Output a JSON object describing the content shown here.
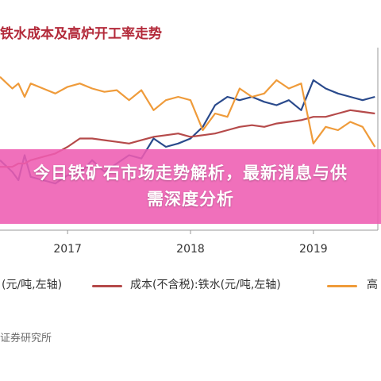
{
  "title": "铁水成本及高炉开工率走势",
  "banner_text": "今日铁矿石市场走势解析，最新消息与供需深度分析",
  "source_text": "证券研究所",
  "legend": [
    {
      "label": "(元/吨,左轴)",
      "color": "#2a4a8c"
    },
    {
      "label": "成本(不含税):铁水(元/吨,左轴)",
      "color": "#b54a4a"
    },
    {
      "label": "高",
      "color": "#ef9b3a"
    }
  ],
  "chart_data": {
    "type": "line",
    "x_ticks": [
      "2017",
      "2018",
      "2019"
    ],
    "x": [
      2016.45,
      2016.55,
      2016.6,
      2016.65,
      2016.7,
      2016.8,
      2016.9,
      2017.0,
      2017.1,
      2017.2,
      2017.3,
      2017.4,
      2017.5,
      2017.6,
      2017.7,
      2017.8,
      2017.9,
      2018.0,
      2018.1,
      2018.2,
      2018.3,
      2018.4,
      2018.5,
      2018.6,
      2018.7,
      2018.8,
      2018.9,
      2019.0,
      2019.1,
      2019.2,
      2019.3,
      2019.4,
      2019.5
    ],
    "series": [
      {
        "values": [
          0.42,
          0.35,
          0.3,
          0.45,
          0.32,
          0.3,
          0.28,
          0.33,
          0.34,
          0.42,
          0.35,
          0.4,
          0.45,
          0.43,
          0.55,
          0.5,
          0.52,
          0.55,
          0.62,
          0.75,
          0.8,
          0.78,
          0.8,
          0.77,
          0.75,
          0.78,
          0.72,
          0.9,
          0.85,
          0.82,
          0.8,
          0.78,
          0.8
        ],
        "color": "#2a4a8c"
      },
      {
        "values": [
          0.38,
          0.38,
          0.4,
          0.4,
          0.42,
          0.44,
          0.46,
          0.5,
          0.55,
          0.55,
          0.54,
          0.53,
          0.52,
          0.54,
          0.56,
          0.57,
          0.58,
          0.56,
          0.57,
          0.58,
          0.6,
          0.62,
          0.63,
          0.62,
          0.64,
          0.65,
          0.66,
          0.68,
          0.68,
          0.7,
          0.72,
          0.71,
          0.7
        ],
        "color": "#b54a4a"
      },
      {
        "values": [
          0.92,
          0.85,
          0.88,
          0.8,
          0.88,
          0.85,
          0.82,
          0.86,
          0.88,
          0.85,
          0.83,
          0.84,
          0.78,
          0.84,
          0.72,
          0.78,
          0.8,
          0.78,
          0.6,
          0.7,
          0.68,
          0.85,
          0.8,
          0.82,
          0.9,
          0.85,
          0.88,
          0.52,
          0.62,
          0.6,
          0.65,
          0.62,
          0.5
        ],
        "color": "#ef9b3a"
      }
    ]
  }
}
